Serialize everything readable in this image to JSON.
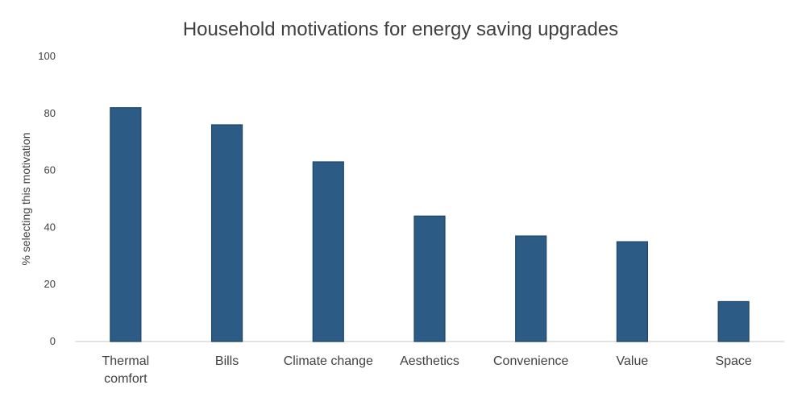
{
  "chart_data": {
    "type": "bar",
    "title": "Household motivations for energy saving upgrades",
    "ylabel": "% selecting this motivation",
    "ylim": [
      0,
      100
    ],
    "yticks": [
      0,
      20,
      40,
      60,
      80,
      100
    ],
    "categories": [
      "Thermal comfort",
      "Bills",
      "Climate change",
      "Aesthetics",
      "Convenience",
      "Value",
      "Space"
    ],
    "category_lines": [
      [
        "Thermal",
        "comfort"
      ],
      [
        "Bills"
      ],
      [
        "Climate change"
      ],
      [
        "Aesthetics"
      ],
      [
        "Convenience"
      ],
      [
        "Value"
      ],
      [
        "Space"
      ]
    ],
    "values": [
      82,
      76,
      63,
      44,
      37,
      35,
      14
    ],
    "grid": false,
    "legend": "none",
    "colors": {
      "bar": "#2C5C86",
      "bar_edge": "#1E4566",
      "axis": "#D9D9D9",
      "text": "#404040"
    }
  }
}
